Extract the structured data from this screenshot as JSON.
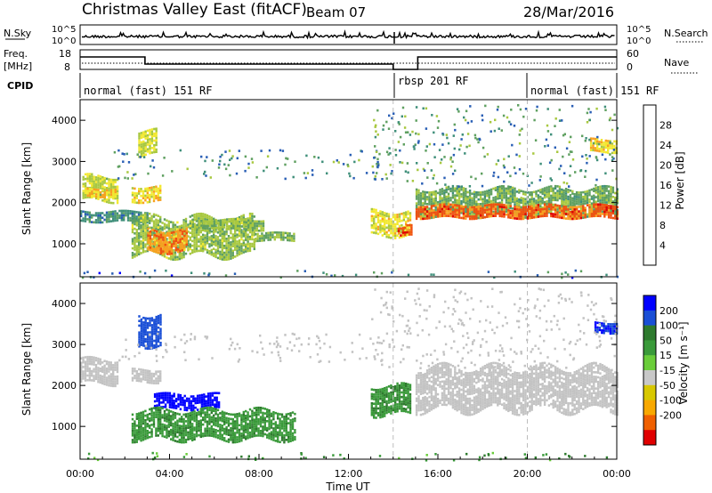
{
  "header": {
    "title": "Christmas Valley East (fitACF)",
    "beam": "Beam 07",
    "date": "28/Mar/2016"
  },
  "top_strip": {
    "nsky_label": "N.Sky",
    "nsky_ticks": [
      "10^5",
      "10^0"
    ],
    "nsearch_label": "N.Search",
    "nsearch_ticks": [
      "10^5",
      "10^0"
    ],
    "freq_label": "Freq.",
    "freq_unit": "[MHz]",
    "freq_ticks": [
      "18",
      "8"
    ],
    "nave_label": "Nave",
    "nave_ticks": [
      "60",
      "0"
    ],
    "cpid_label": "CPID",
    "cpid_segments": [
      {
        "start_h": 0,
        "end_h": 14,
        "label": "normal (fast) 151 RF"
      },
      {
        "start_h": 14,
        "end_h": 20,
        "label": "rbsp 201 RF"
      },
      {
        "start_h": 20,
        "end_h": 24,
        "label": "normal (fast) 151 RF"
      }
    ],
    "freq_profile": [
      [
        0,
        15
      ],
      [
        2.9,
        15
      ],
      [
        2.9,
        11
      ],
      [
        14,
        11
      ],
      [
        14,
        8
      ],
      [
        15.1,
        8
      ],
      [
        15.1,
        15
      ],
      [
        24,
        15
      ]
    ]
  },
  "colors": {
    "power_scale": [
      "#0000ff",
      "#2a5fb5",
      "#3f8f7a",
      "#5fa060",
      "#a8c840",
      "#f2e830",
      "#f8a020",
      "#f05010",
      "#e00000"
    ],
    "velocity_scale": [
      "#0000ff",
      "#1a4fd6",
      "#2e7a2e",
      "#3a9a3a",
      "#6acd3a",
      "#c8c8c8",
      "#d8c800",
      "#f8a800",
      "#f06000",
      "#e00000"
    ],
    "ground_scatter": "#c3c3c3"
  },
  "chart_data": [
    {
      "type": "heatmap",
      "name": "power",
      "xlabel": "",
      "ylabel": "Slant Range [km]",
      "xlim": [
        0,
        24
      ],
      "ylim": [
        200,
        4500
      ],
      "yticks": [
        "1000",
        "2000",
        "3000",
        "4000"
      ],
      "colorbar_label": "Power [dB]",
      "colorbar_ticks": [
        "4",
        "8",
        "12",
        "16",
        "20",
        "24",
        "28"
      ],
      "vmin": 0,
      "vmax": 32,
      "dashed_markers_h": [
        14,
        20
      ],
      "blobs": [
        {
          "t0": 0.1,
          "t1": 1.7,
          "r0": 2050,
          "r1": 2650,
          "v": 17
        },
        {
          "t0": 0.2,
          "t1": 1.6,
          "r0": 2150,
          "r1": 2350,
          "v": 22
        },
        {
          "t0": 0.0,
          "t1": 3.0,
          "r0": 1550,
          "r1": 1800,
          "v": 9
        },
        {
          "t0": 2.3,
          "t1": 3.6,
          "r0": 2050,
          "r1": 2400,
          "v": 20
        },
        {
          "t0": 2.6,
          "t1": 3.4,
          "r0": 3150,
          "r1": 3750,
          "v": 18
        },
        {
          "t0": 2.3,
          "t1": 7.8,
          "r0": 750,
          "r1": 1650,
          "v": 15
        },
        {
          "t0": 3.0,
          "t1": 4.8,
          "r0": 800,
          "r1": 1350,
          "v": 24
        },
        {
          "t0": 5.0,
          "t1": 8.2,
          "r0": 1350,
          "r1": 1600,
          "v": 15
        },
        {
          "t0": 7.8,
          "t1": 9.6,
          "r0": 1100,
          "r1": 1280,
          "v": 14
        },
        {
          "t0": 13.0,
          "t1": 14.8,
          "r0": 1200,
          "r1": 1800,
          "v": 19
        },
        {
          "t0": 14.2,
          "t1": 14.8,
          "r0": 1200,
          "r1": 1450,
          "v": 27
        },
        {
          "t0": 15.0,
          "t1": 24.0,
          "r0": 1700,
          "r1": 2350,
          "v": 13
        },
        {
          "t0": 15.0,
          "t1": 24.0,
          "r0": 1650,
          "r1": 1950,
          "v": 26
        },
        {
          "t0": 22.8,
          "t1": 24.0,
          "r0": 3250,
          "r1": 3550,
          "v": 20
        }
      ],
      "sparse": [
        {
          "t0": 1.5,
          "t1": 14.0,
          "r0": 2600,
          "r1": 3300,
          "v": 10
        },
        {
          "t0": 13.0,
          "t1": 24.0,
          "r0": 2400,
          "r1": 4400,
          "v": 10
        },
        {
          "t0": 0.0,
          "t1": 24.0,
          "r0": 200,
          "r1": 380,
          "v": 8
        }
      ]
    },
    {
      "type": "heatmap",
      "name": "velocity",
      "xlabel": "Time UT",
      "ylabel": "Slant Range [km]",
      "xlim": [
        0,
        24
      ],
      "ylim": [
        200,
        4500
      ],
      "xticks": [
        "00:00",
        "04:00",
        "08:00",
        "12:00",
        "16:00",
        "20:00",
        "00:00"
      ],
      "yticks": [
        "1000",
        "2000",
        "3000",
        "4000"
      ],
      "colorbar_label": "Velocity [m s⁻¹]",
      "colorbar_ticks": [
        "200",
        "100",
        "50",
        "15",
        "-15",
        "-50",
        "-100",
        "-200"
      ],
      "vmin": -250,
      "vmax": 250,
      "dashed_markers_h": [
        14,
        20
      ],
      "blobs": [
        {
          "t0": 0.0,
          "t1": 1.7,
          "r0": 2050,
          "r1": 2650,
          "v": "gs"
        },
        {
          "t0": 2.3,
          "t1": 3.6,
          "r0": 2100,
          "r1": 2400,
          "v": "gs"
        },
        {
          "t0": 2.6,
          "t1": 3.6,
          "r0": 3000,
          "r1": 3750,
          "v": 180
        },
        {
          "t0": 3.3,
          "t1": 6.2,
          "r0": 1450,
          "r1": 1800,
          "v": 220
        },
        {
          "t0": 2.3,
          "t1": 9.6,
          "r0": 700,
          "r1": 1400,
          "v": 40
        },
        {
          "t0": 13.0,
          "t1": 14.8,
          "r0": 1300,
          "r1": 2000,
          "v": 40
        },
        {
          "t0": 15.0,
          "t1": 24.0,
          "r0": 1400,
          "r1": 2450,
          "v": "gs"
        },
        {
          "t0": 23.0,
          "t1": 24.0,
          "r0": 3300,
          "r1": 3550,
          "v": 200
        }
      ],
      "sparse": [
        {
          "t0": 1.5,
          "t1": 14.0,
          "r0": 2600,
          "r1": 3300,
          "v": "gs"
        },
        {
          "t0": 13.0,
          "t1": 24.0,
          "r0": 2400,
          "r1": 4400,
          "v": "gs"
        },
        {
          "t0": 0.0,
          "t1": 24.0,
          "r0": 200,
          "r1": 380,
          "v": 30
        }
      ]
    }
  ]
}
